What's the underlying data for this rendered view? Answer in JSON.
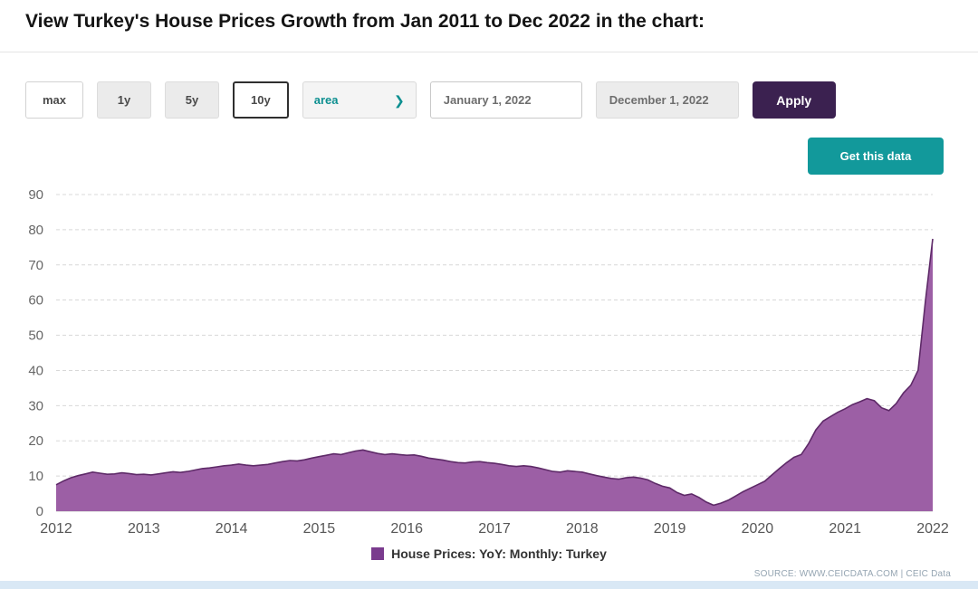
{
  "page": {
    "title": "View Turkey's House Prices Growth from Jan 2011 to Dec 2022 in the chart:"
  },
  "toolbar": {
    "range_buttons": [
      {
        "label": "max",
        "selected": false
      },
      {
        "label": "1y",
        "selected": false
      },
      {
        "label": "5y",
        "selected": false
      },
      {
        "label": "10y",
        "selected": true
      }
    ],
    "chart_type_select": {
      "value": "area"
    },
    "start_date_input": {
      "value": "January 1, 2022"
    },
    "end_date_input": {
      "value": "December 1, 2022"
    },
    "apply_button": "Apply",
    "get_data_button": "Get this data"
  },
  "chart_data": {
    "type": "area",
    "title": "",
    "xlabel": "",
    "ylabel": "",
    "x_unit": "month",
    "x_start": "2012-01",
    "x_end": "2022-01",
    "x_tick_labels": [
      "2012",
      "2013",
      "2014",
      "2015",
      "2016",
      "2017",
      "2018",
      "2019",
      "2020",
      "2021",
      "2022"
    ],
    "y_ticks": [
      0,
      10,
      20,
      30,
      40,
      50,
      60,
      70,
      80,
      90
    ],
    "ylim": [
      0,
      90
    ],
    "grid": "horizontal-dashed",
    "legend_position": "bottom-center",
    "series": [
      {
        "name": "House Prices: YoY: Monthly: Turkey",
        "fill": "#9c5fa5",
        "stroke": "#5e2a68",
        "values": [
          7.5,
          8.6,
          9.5,
          10.1,
          10.6,
          11.1,
          10.8,
          10.5,
          10.6,
          10.9,
          10.7,
          10.4,
          10.5,
          10.3,
          10.6,
          10.9,
          11.2,
          11.0,
          11.3,
          11.7,
          12.1,
          12.3,
          12.6,
          12.9,
          13.1,
          13.4,
          13.1,
          12.9,
          13.1,
          13.3,
          13.7,
          14.1,
          14.4,
          14.3,
          14.6,
          15.1,
          15.5,
          15.9,
          16.3,
          16.1,
          16.6,
          17.1,
          17.4,
          16.9,
          16.4,
          16.1,
          16.3,
          16.1,
          15.9,
          16.0,
          15.6,
          15.1,
          14.8,
          14.5,
          14.1,
          13.8,
          13.7,
          14.0,
          14.1,
          13.8,
          13.6,
          13.3,
          12.9,
          12.7,
          12.9,
          12.7,
          12.3,
          11.8,
          11.3,
          11.1,
          11.5,
          11.3,
          11.1,
          10.6,
          10.1,
          9.7,
          9.3,
          9.1,
          9.5,
          9.7,
          9.4,
          8.9,
          7.9,
          7.1,
          6.6,
          5.3,
          4.5,
          4.9,
          3.9,
          2.6,
          1.7,
          2.3,
          3.1,
          4.3,
          5.5,
          6.5,
          7.5,
          8.5,
          10.3,
          12.1,
          13.8,
          15.3,
          16.1,
          19.2,
          23.1,
          25.6,
          26.9,
          28.1,
          29.1,
          30.3,
          31.1,
          32.0,
          31.4,
          29.4,
          28.6,
          30.6,
          33.6,
          35.8,
          40.1,
          59.6,
          77.4
        ]
      }
    ]
  },
  "legend": {
    "label": "House Prices: YoY: Monthly: Turkey",
    "color": "#7a3b8e"
  },
  "source": "SOURCE: WWW.CEICDATA.COM | CEIC Data"
}
